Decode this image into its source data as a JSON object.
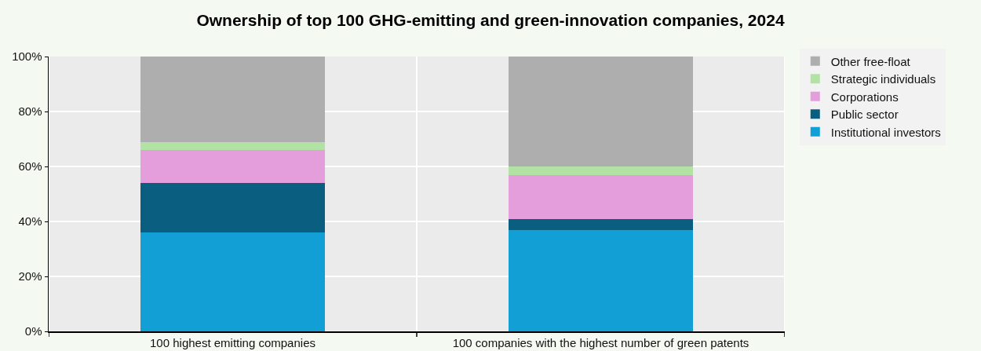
{
  "chart_data": {
    "type": "bar",
    "title": "Ownership of top 100 GHG-emitting and green-innovation companies, 2024",
    "categories": [
      "100 highest emitting companies",
      "100 companies with the highest number of green patents"
    ],
    "stacked": true,
    "series": [
      {
        "name": "Institutional investors",
        "color": "#119fd6",
        "values": [
          36,
          37
        ]
      },
      {
        "name": "Public sector",
        "color": "#0a5f80",
        "values": [
          18,
          4
        ]
      },
      {
        "name": "Corporations",
        "color": "#e49edc",
        "values": [
          12,
          16
        ]
      },
      {
        "name": "Strategic individuals",
        "color": "#b3e3a4",
        "values": [
          3,
          3
        ]
      },
      {
        "name": "Other free-float",
        "color": "#aeaeae",
        "values": [
          31,
          40
        ]
      }
    ],
    "ylim": [
      0,
      100
    ],
    "yticks": [
      {
        "value": 0,
        "label": "0%"
      },
      {
        "value": 20,
        "label": "20%"
      },
      {
        "value": 40,
        "label": "40%"
      },
      {
        "value": 60,
        "label": "60%"
      },
      {
        "value": 80,
        "label": "80%"
      },
      {
        "value": 100,
        "label": "100%"
      }
    ],
    "grid": true,
    "legend": "right"
  }
}
